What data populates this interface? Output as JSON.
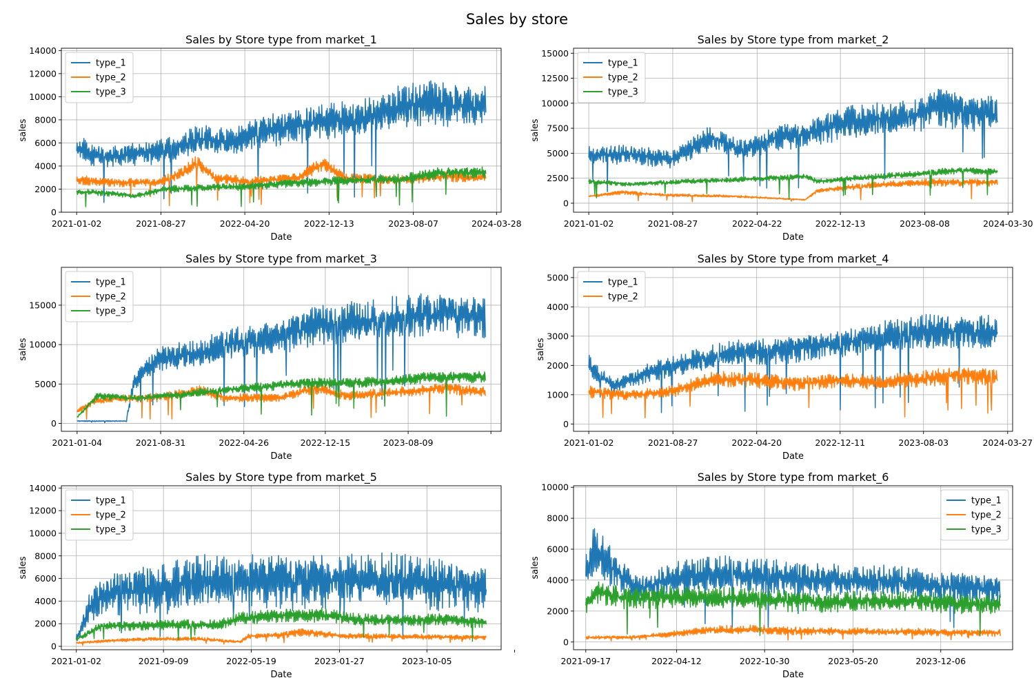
{
  "figure": {
    "title": "Sales by store"
  },
  "chart_data": [
    {
      "type": "line",
      "title": "Sales by Store type from market_1",
      "xlabel": "Date",
      "ylabel": "sales",
      "x_ticks": [
        "2021-01-02",
        "2021-08-27",
        "2022-04-20",
        "2022-12-13",
        "2023-08-07",
        "2024-03-28"
      ],
      "xlim": [
        "2020-11-20",
        "2024-04-10"
      ],
      "ylim": [
        0,
        14200
      ],
      "y_ticks": [
        0,
        2000,
        4000,
        6000,
        8000,
        10000,
        12000,
        14000
      ],
      "grid": true,
      "legend": "top-left",
      "series": [
        {
          "name": "type_1",
          "color": "#1f77b4",
          "base": [
            [
              0.0,
              5600
            ],
            [
              0.06,
              4800
            ],
            [
              0.14,
              5100
            ],
            [
              0.22,
              5300
            ],
            [
              0.3,
              6200
            ],
            [
              0.38,
              6000
            ],
            [
              0.46,
              7200
            ],
            [
              0.55,
              7600
            ],
            [
              0.62,
              8000
            ],
            [
              0.7,
              8000
            ],
            [
              0.78,
              9000
            ],
            [
              0.87,
              9600
            ],
            [
              1.0,
              9200
            ]
          ],
          "amp": 0.22,
          "seed": 11
        },
        {
          "name": "type_2",
          "color": "#ff7f0e",
          "base": [
            [
              0.0,
              2800
            ],
            [
              0.1,
              2600
            ],
            [
              0.2,
              2600
            ],
            [
              0.26,
              3400
            ],
            [
              0.29,
              4300
            ],
            [
              0.34,
              2900
            ],
            [
              0.42,
              2700
            ],
            [
              0.54,
              3000
            ],
            [
              0.6,
              4200
            ],
            [
              0.66,
              2900
            ],
            [
              0.78,
              2800
            ],
            [
              0.9,
              3100
            ],
            [
              1.0,
              3000
            ]
          ],
          "amp": 0.16,
          "seed": 23
        },
        {
          "name": "type_3",
          "color": "#2ca02c",
          "base": [
            [
              0.0,
              1800
            ],
            [
              0.1,
              1600
            ],
            [
              0.14,
              1400
            ],
            [
              0.22,
              2000
            ],
            [
              0.4,
              2200
            ],
            [
              0.55,
              2600
            ],
            [
              0.7,
              2800
            ],
            [
              0.8,
              2900
            ],
            [
              0.88,
              3400
            ],
            [
              1.0,
              3500
            ]
          ],
          "amp": 0.16,
          "seed": 37
        }
      ]
    },
    {
      "type": "line",
      "title": "Sales by Store type from market_2",
      "xlabel": "Date",
      "ylabel": "sales",
      "x_ticks": [
        "2021-01-02",
        "2021-08-27",
        "2022-04-22",
        "2022-12-13",
        "2023-08-08",
        "2024-03-30"
      ],
      "xlim": [
        "2020-11-20",
        "2024-04-12"
      ],
      "ylim": [
        -900,
        15500
      ],
      "y_ticks": [
        0,
        2500,
        5000,
        7500,
        10000,
        12500,
        15000
      ],
      "grid": true,
      "legend": "top-left",
      "series": [
        {
          "name": "type_1",
          "color": "#1f77b4",
          "base": [
            [
              0.0,
              4800
            ],
            [
              0.1,
              5000
            ],
            [
              0.2,
              4400
            ],
            [
              0.3,
              6400
            ],
            [
              0.38,
              5200
            ],
            [
              0.45,
              6500
            ],
            [
              0.55,
              7200
            ],
            [
              0.62,
              8000
            ],
            [
              0.7,
              8300
            ],
            [
              0.78,
              8500
            ],
            [
              0.86,
              9600
            ],
            [
              1.0,
              9000
            ]
          ],
          "amp": 0.22,
          "seed": 41
        },
        {
          "name": "type_2",
          "color": "#ff7f0e",
          "base": [
            [
              0.0,
              700
            ],
            [
              0.08,
              1100
            ],
            [
              0.2,
              800
            ],
            [
              0.35,
              700
            ],
            [
              0.45,
              500
            ],
            [
              0.5,
              400
            ],
            [
              0.53,
              350
            ],
            [
              0.56,
              1300
            ],
            [
              0.7,
              1800
            ],
            [
              0.85,
              2100
            ],
            [
              1.0,
              2100
            ]
          ],
          "amp": 0.2,
          "seed": 53
        },
        {
          "name": "type_3",
          "color": "#2ca02c",
          "base": [
            [
              0.0,
              2200
            ],
            [
              0.1,
              1900
            ],
            [
              0.25,
              2200
            ],
            [
              0.4,
              2400
            ],
            [
              0.53,
              2700
            ],
            [
              0.56,
              2200
            ],
            [
              0.65,
              2500
            ],
            [
              0.8,
              2900
            ],
            [
              0.9,
              3300
            ],
            [
              1.0,
              3200
            ]
          ],
          "amp": 0.12,
          "seed": 67
        }
      ]
    },
    {
      "type": "line",
      "title": "Sales by Store type from market_3",
      "xlabel": "Date",
      "ylabel": "sales",
      "x_ticks": [
        "2021-01-04",
        "2021-08-31",
        "2022-04-26",
        "2022-12-15",
        "2023-08-09",
        ""
      ],
      "xlim": [
        "2020-11-20",
        "2024-05-01"
      ],
      "ylim": [
        -1000,
        19800
      ],
      "y_ticks": [
        0,
        5000,
        10000,
        15000
      ],
      "grid": true,
      "legend": "top-left",
      "series": [
        {
          "name": "type_1",
          "color": "#1f77b4",
          "base": [
            [
              0.0,
              300
            ],
            [
              0.12,
              300
            ],
            [
              0.14,
              5500
            ],
            [
              0.2,
              8200
            ],
            [
              0.3,
              8800
            ],
            [
              0.38,
              10000
            ],
            [
              0.48,
              11000
            ],
            [
              0.58,
              12500
            ],
            [
              0.7,
              12800
            ],
            [
              0.8,
              13500
            ],
            [
              0.9,
              14000
            ],
            [
              1.0,
              13500
            ]
          ],
          "amp": 0.22,
          "seed": 71
        },
        {
          "name": "type_2",
          "color": "#ff7f0e",
          "base": [
            [
              0.0,
              1500
            ],
            [
              0.04,
              2800
            ],
            [
              0.1,
              3200
            ],
            [
              0.2,
              3300
            ],
            [
              0.3,
              4200
            ],
            [
              0.36,
              3200
            ],
            [
              0.5,
              3300
            ],
            [
              0.58,
              4500
            ],
            [
              0.66,
              3500
            ],
            [
              0.8,
              4000
            ],
            [
              0.9,
              4600
            ],
            [
              1.0,
              4000
            ]
          ],
          "amp": 0.18,
          "seed": 83
        },
        {
          "name": "type_3",
          "color": "#2ca02c",
          "base": [
            [
              0.0,
              800
            ],
            [
              0.05,
              3500
            ],
            [
              0.15,
              3200
            ],
            [
              0.25,
              3600
            ],
            [
              0.35,
              4200
            ],
            [
              0.45,
              4600
            ],
            [
              0.55,
              5200
            ],
            [
              0.65,
              5100
            ],
            [
              0.75,
              5200
            ],
            [
              0.85,
              5800
            ],
            [
              1.0,
              6000
            ]
          ],
          "amp": 0.14,
          "seed": 97
        }
      ]
    },
    {
      "type": "line",
      "title": "Sales by Store type from market_4",
      "xlabel": "Date",
      "ylabel": "sales",
      "x_ticks": [
        "2021-01-02",
        "2021-08-27",
        "2022-04-20",
        "2022-12-11",
        "2023-08-03",
        "2024-03-27"
      ],
      "xlim": [
        "2020-11-20",
        "2024-04-10"
      ],
      "ylim": [
        -250,
        5350
      ],
      "y_ticks": [
        0,
        1000,
        2000,
        3000,
        4000,
        5000
      ],
      "grid": true,
      "legend": "top-left",
      "series": [
        {
          "name": "type_1",
          "color": "#1f77b4",
          "base": [
            [
              0.0,
              2000
            ],
            [
              0.06,
              1300
            ],
            [
              0.15,
              1800
            ],
            [
              0.25,
              2100
            ],
            [
              0.35,
              2400
            ],
            [
              0.45,
              2500
            ],
            [
              0.55,
              2700
            ],
            [
              0.65,
              2800
            ],
            [
              0.75,
              3000
            ],
            [
              0.85,
              3200
            ],
            [
              1.0,
              3200
            ]
          ],
          "amp": 0.2,
          "seed": 101
        },
        {
          "name": "type_2",
          "color": "#ff7f0e",
          "base": [
            [
              0.0,
              1100
            ],
            [
              0.1,
              1000
            ],
            [
              0.2,
              1100
            ],
            [
              0.3,
              1500
            ],
            [
              0.4,
              1500
            ],
            [
              0.5,
              1400
            ],
            [
              0.6,
              1500
            ],
            [
              0.7,
              1400
            ],
            [
              0.8,
              1500
            ],
            [
              0.9,
              1700
            ],
            [
              1.0,
              1600
            ]
          ],
          "amp": 0.2,
          "seed": 113
        }
      ]
    },
    {
      "type": "line",
      "title": "Sales by Store type from market_5",
      "xlabel": "Date",
      "ylabel": "sales",
      "x_ticks": [
        "2021-01-02",
        "2021-09-09",
        "2022-05-19",
        "2023-01-27",
        "2023-10-05",
        ""
      ],
      "xlim": [
        "2020-11-20",
        "2024-05-05"
      ],
      "ylim": [
        -300,
        14200
      ],
      "y_ticks": [
        0,
        2000,
        4000,
        6000,
        8000,
        10000,
        12000,
        14000
      ],
      "grid": true,
      "legend": "top-left",
      "series": [
        {
          "name": "type_1",
          "color": "#1f77b4",
          "base": [
            [
              0.0,
              700
            ],
            [
              0.04,
              4000
            ],
            [
              0.1,
              5000
            ],
            [
              0.2,
              5200
            ],
            [
              0.3,
              5600
            ],
            [
              0.4,
              5800
            ],
            [
              0.5,
              6000
            ],
            [
              0.6,
              5800
            ],
            [
              0.7,
              5800
            ],
            [
              0.8,
              5700
            ],
            [
              0.9,
              5600
            ],
            [
              1.0,
              5200
            ]
          ],
          "amp": 0.45,
          "seed": 127
        },
        {
          "name": "type_2",
          "color": "#ff7f0e",
          "base": [
            [
              0.0,
              300
            ],
            [
              0.1,
              550
            ],
            [
              0.2,
              650
            ],
            [
              0.3,
              650
            ],
            [
              0.4,
              400
            ],
            [
              0.42,
              900
            ],
            [
              0.5,
              1000
            ],
            [
              0.55,
              1300
            ],
            [
              0.65,
              900
            ],
            [
              0.8,
              850
            ],
            [
              1.0,
              800
            ]
          ],
          "amp": 0.3,
          "seed": 131
        },
        {
          "name": "type_3",
          "color": "#2ca02c",
          "base": [
            [
              0.0,
              600
            ],
            [
              0.06,
              1800
            ],
            [
              0.2,
              1900
            ],
            [
              0.35,
              1900
            ],
            [
              0.4,
              2500
            ],
            [
              0.5,
              2800
            ],
            [
              0.6,
              2800
            ],
            [
              0.7,
              2300
            ],
            [
              0.8,
              2300
            ],
            [
              0.9,
              2400
            ],
            [
              1.0,
              2100
            ]
          ],
          "amp": 0.25,
          "seed": 139
        }
      ]
    },
    {
      "type": "line",
      "title": "Sales by Store type from market_6",
      "xlabel": "Date",
      "ylabel": "sales",
      "x_ticks": [
        "2021-09-17",
        "2022-04-12",
        "2022-10-30",
        "2023-05-20",
        "2023-12-06"
      ],
      "xlim": [
        "2021-08-20",
        "2024-05-18"
      ],
      "ylim": [
        -500,
        10100
      ],
      "y_ticks": [
        0,
        2000,
        4000,
        6000,
        8000,
        10000
      ],
      "grid": true,
      "legend": "top-right",
      "series": [
        {
          "name": "type_1",
          "color": "#1f77b4",
          "base": [
            [
              0.0,
              4500
            ],
            [
              0.02,
              6000
            ],
            [
              0.06,
              5000
            ],
            [
              0.12,
              3500
            ],
            [
              0.2,
              4000
            ],
            [
              0.3,
              4300
            ],
            [
              0.4,
              4300
            ],
            [
              0.5,
              4200
            ],
            [
              0.6,
              4000
            ],
            [
              0.7,
              3900
            ],
            [
              0.8,
              3700
            ],
            [
              0.9,
              3600
            ],
            [
              1.0,
              3500
            ]
          ],
          "amp": 0.3,
          "seed": 149
        },
        {
          "name": "type_2",
          "color": "#ff7f0e",
          "base": [
            [
              0.0,
              300
            ],
            [
              0.1,
              300
            ],
            [
              0.2,
              500
            ],
            [
              0.3,
              750
            ],
            [
              0.4,
              800
            ],
            [
              0.5,
              750
            ],
            [
              0.6,
              700
            ],
            [
              0.7,
              650
            ],
            [
              0.8,
              650
            ],
            [
              0.9,
              600
            ],
            [
              1.0,
              600
            ]
          ],
          "amp": 0.4,
          "seed": 157
        },
        {
          "name": "type_3",
          "color": "#2ca02c",
          "base": [
            [
              0.0,
              2500
            ],
            [
              0.03,
              3300
            ],
            [
              0.1,
              2900
            ],
            [
              0.2,
              2900
            ],
            [
              0.3,
              2800
            ],
            [
              0.4,
              2800
            ],
            [
              0.5,
              2700
            ],
            [
              0.6,
              2600
            ],
            [
              0.7,
              2600
            ],
            [
              0.8,
              2600
            ],
            [
              0.9,
              2500
            ],
            [
              1.0,
              2500
            ]
          ],
          "amp": 0.28,
          "seed": 163
        }
      ]
    }
  ]
}
